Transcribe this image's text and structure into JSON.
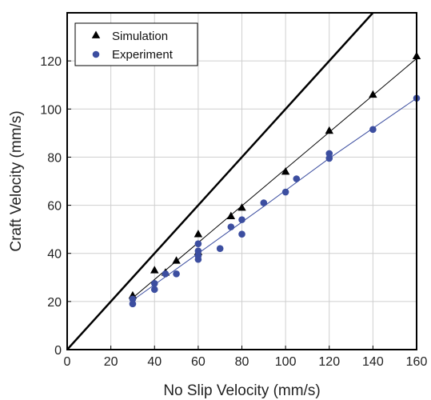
{
  "chart_data": {
    "type": "scatter",
    "title": "",
    "xlabel": "No Slip Velocity (mm/s)",
    "ylabel": "Craft Velocity (mm/s)",
    "xlim": [
      0,
      160
    ],
    "ylim": [
      0,
      140
    ],
    "xticks": [
      0,
      20,
      40,
      60,
      80,
      100,
      120,
      140,
      160
    ],
    "yticks": [
      0,
      20,
      40,
      60,
      80,
      100,
      120
    ],
    "grid": true,
    "legend_position": "top-left",
    "reference_line": {
      "points": [
        [
          0,
          0
        ],
        [
          140,
          140
        ]
      ],
      "color": "#000000"
    },
    "series": [
      {
        "name": "Simulation",
        "marker": "triangle",
        "color": "#000000",
        "points": [
          [
            30,
            22.5
          ],
          [
            40,
            33
          ],
          [
            45,
            32
          ],
          [
            50,
            37
          ],
          [
            60,
            48
          ],
          [
            60,
            40.5
          ],
          [
            75,
            55.5
          ],
          [
            80,
            59
          ],
          [
            100,
            74
          ],
          [
            120,
            91
          ],
          [
            140,
            106
          ],
          [
            160,
            122
          ]
        ],
        "fit_line": [
          [
            30,
            21.5
          ],
          [
            160,
            121
          ]
        ]
      },
      {
        "name": "Experiment",
        "marker": "circle",
        "color": "#3c4ea0",
        "points": [
          [
            30,
            21
          ],
          [
            30,
            19
          ],
          [
            40,
            27.5
          ],
          [
            40,
            25
          ],
          [
            45,
            31.5
          ],
          [
            50,
            31.5
          ],
          [
            60,
            44
          ],
          [
            60,
            41
          ],
          [
            60,
            39
          ],
          [
            60,
            37.5
          ],
          [
            70,
            42
          ],
          [
            75,
            51
          ],
          [
            80,
            54
          ],
          [
            80,
            48
          ],
          [
            90,
            61
          ],
          [
            100,
            65.5
          ],
          [
            105,
            71
          ],
          [
            120,
            81.5
          ],
          [
            120,
            79.5
          ],
          [
            140,
            91.5
          ],
          [
            160,
            104.5
          ]
        ],
        "fit_line": [
          [
            30,
            20.5
          ],
          [
            60,
            40
          ],
          [
            90,
            59.5
          ],
          [
            120,
            79.5
          ],
          [
            160,
            104.5
          ]
        ]
      }
    ]
  }
}
